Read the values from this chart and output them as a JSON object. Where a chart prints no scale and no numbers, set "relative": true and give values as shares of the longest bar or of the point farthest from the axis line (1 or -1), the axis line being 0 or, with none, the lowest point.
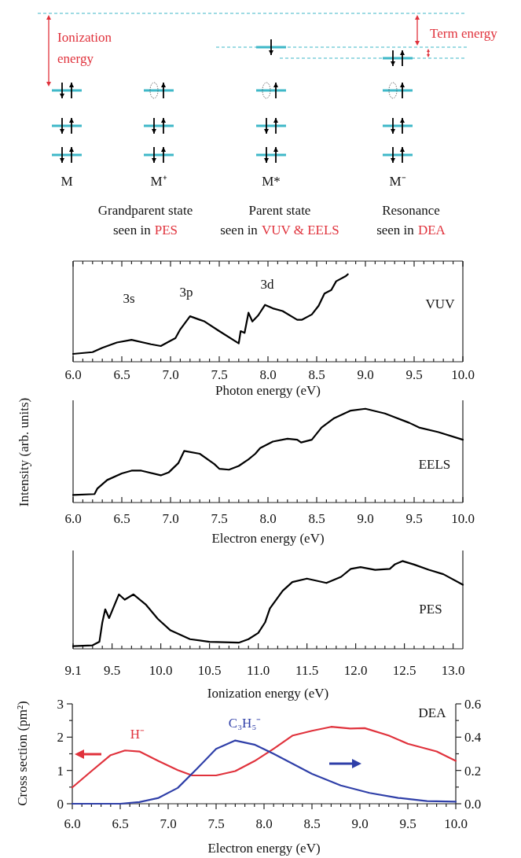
{
  "chart_data": [
    {
      "type": "other",
      "annotations": [
        "Ionization energy",
        "Term energy",
        "M",
        "M⁺",
        "M*",
        "M⁻",
        "Grandparent state",
        "seen in",
        "PES",
        "Parent state",
        "seen in",
        "VUV & EELS",
        "Resonance",
        "seen in",
        "DEA"
      ]
    },
    {
      "type": "line",
      "title": "VUV",
      "xlabel": "Photon energy (eV)",
      "relative": true,
      "x": [
        6.0,
        6.2,
        6.3,
        6.45,
        6.6,
        6.8,
        6.9,
        7.0,
        7.05,
        7.1,
        7.2,
        7.35,
        7.5,
        7.7,
        7.72,
        7.76,
        7.8,
        7.84,
        7.9,
        7.97,
        8.05,
        8.15,
        8.3,
        8.35,
        8.45,
        8.52,
        8.58,
        8.65,
        8.7,
        8.8,
        8.82
      ],
      "series": [
        {
          "color": "#000000",
          "values": [
            0.09,
            0.11,
            0.16,
            0.22,
            0.25,
            0.2,
            0.18,
            0.24,
            0.27,
            0.37,
            0.52,
            0.46,
            0.35,
            0.21,
            0.35,
            0.33,
            0.56,
            0.46,
            0.53,
            0.65,
            0.61,
            0.58,
            0.48,
            0.48,
            0.54,
            0.64,
            0.78,
            0.82,
            0.92,
            0.98,
            1.0
          ]
        }
      ],
      "annotations": [
        "3s",
        "3p",
        "3d"
      ],
      "xlim": [
        6.0,
        10.0
      ],
      "xticks": [
        {
          "value": 6.0,
          "label": "6.0"
        },
        {
          "value": 6.1,
          "label": null
        },
        {
          "value": 6.2,
          "label": null
        },
        {
          "value": 6.3,
          "label": null
        },
        {
          "value": 6.4,
          "label": null
        },
        {
          "value": 6.5,
          "label": "6.5"
        },
        {
          "value": 6.6,
          "label": null
        },
        {
          "value": 6.7,
          "label": null
        },
        {
          "value": 6.8,
          "label": null
        },
        {
          "value": 6.9,
          "label": null
        },
        {
          "value": 7.0,
          "label": "7.0"
        },
        {
          "value": 7.1,
          "label": null
        },
        {
          "value": 7.2,
          "label": null
        },
        {
          "value": 7.3,
          "label": null
        },
        {
          "value": 7.4,
          "label": null
        },
        {
          "value": 7.5,
          "label": "7.5"
        },
        {
          "value": 7.6,
          "label": null
        },
        {
          "value": 7.7,
          "label": null
        },
        {
          "value": 7.8,
          "label": null
        },
        {
          "value": 7.9,
          "label": null
        },
        {
          "value": 8.0,
          "label": "8.0"
        },
        {
          "value": 8.1,
          "label": null
        },
        {
          "value": 8.2,
          "label": null
        },
        {
          "value": 8.3,
          "label": null
        },
        {
          "value": 8.4,
          "label": null
        },
        {
          "value": 8.5,
          "label": "8.5"
        },
        {
          "value": 8.6,
          "label": null
        },
        {
          "value": 8.7,
          "label": null
        },
        {
          "value": 8.8,
          "label": null
        },
        {
          "value": 8.9,
          "label": null
        },
        {
          "value": 9.0,
          "label": "9.0"
        },
        {
          "value": 9.1,
          "label": null
        },
        {
          "value": 9.2,
          "label": null
        },
        {
          "value": 9.3,
          "label": null
        },
        {
          "value": 9.4,
          "label": null
        },
        {
          "value": 9.5,
          "label": "9.5"
        },
        {
          "value": 9.6,
          "label": null
        },
        {
          "value": 9.7,
          "label": null
        },
        {
          "value": 9.8,
          "label": null
        },
        {
          "value": 9.9,
          "label": null
        },
        {
          "value": 10.0,
          "label": "10.0"
        }
      ],
      "tick_labels": "x"
    },
    {
      "type": "line",
      "title": "EELS",
      "xlabel": "Electron energy (eV)",
      "ylabel": "Intensity (arb. units)",
      "relative": true,
      "x": [
        6.0,
        6.22,
        6.25,
        6.35,
        6.5,
        6.6,
        6.7,
        6.9,
        6.98,
        7.08,
        7.14,
        7.3,
        7.45,
        7.5,
        7.6,
        7.7,
        7.8,
        7.87,
        7.92,
        8.05,
        8.2,
        8.3,
        8.34,
        8.45,
        8.55,
        8.68,
        8.85,
        9.0,
        9.2,
        9.3,
        9.45,
        9.55,
        9.75,
        10.0
      ],
      "series": [
        {
          "color": "#000000",
          "values": [
            0.08,
            0.09,
            0.15,
            0.24,
            0.31,
            0.34,
            0.34,
            0.29,
            0.32,
            0.42,
            0.55,
            0.52,
            0.41,
            0.36,
            0.35,
            0.39,
            0.46,
            0.52,
            0.58,
            0.65,
            0.68,
            0.67,
            0.64,
            0.67,
            0.8,
            0.9,
            0.98,
            1.0,
            0.95,
            0.91,
            0.85,
            0.8,
            0.75,
            0.67
          ]
        }
      ],
      "xlim": [
        6.0,
        10.0
      ],
      "xticks": [
        {
          "value": 6.0,
          "label": "6.0"
        },
        {
          "value": 6.1,
          "label": null
        },
        {
          "value": 6.2,
          "label": null
        },
        {
          "value": 6.3,
          "label": null
        },
        {
          "value": 6.4,
          "label": null
        },
        {
          "value": 6.5,
          "label": "6.5"
        },
        {
          "value": 6.6,
          "label": null
        },
        {
          "value": 6.7,
          "label": null
        },
        {
          "value": 6.8,
          "label": null
        },
        {
          "value": 6.9,
          "label": null
        },
        {
          "value": 7.0,
          "label": "7.0"
        },
        {
          "value": 7.1,
          "label": null
        },
        {
          "value": 7.2,
          "label": null
        },
        {
          "value": 7.3,
          "label": null
        },
        {
          "value": 7.4,
          "label": null
        },
        {
          "value": 7.5,
          "label": "7.5"
        },
        {
          "value": 7.6,
          "label": null
        },
        {
          "value": 7.7,
          "label": null
        },
        {
          "value": 7.8,
          "label": null
        },
        {
          "value": 7.9,
          "label": null
        },
        {
          "value": 8.0,
          "label": "8.0"
        },
        {
          "value": 8.1,
          "label": null
        },
        {
          "value": 8.2,
          "label": null
        },
        {
          "value": 8.3,
          "label": null
        },
        {
          "value": 8.4,
          "label": null
        },
        {
          "value": 8.5,
          "label": "8.5"
        },
        {
          "value": 8.6,
          "label": null
        },
        {
          "value": 8.7,
          "label": null
        },
        {
          "value": 8.8,
          "label": null
        },
        {
          "value": 8.9,
          "label": null
        },
        {
          "value": 9.0,
          "label": "9.0"
        },
        {
          "value": 9.1,
          "label": null
        },
        {
          "value": 9.2,
          "label": null
        },
        {
          "value": 9.3,
          "label": null
        },
        {
          "value": 9.4,
          "label": null
        },
        {
          "value": 9.5,
          "label": "9.5"
        },
        {
          "value": 9.6,
          "label": null
        },
        {
          "value": 9.7,
          "label": null
        },
        {
          "value": 9.8,
          "label": null
        },
        {
          "value": 9.9,
          "label": null
        },
        {
          "value": 10.0,
          "label": "10.0"
        }
      ],
      "tick_labels": "x"
    },
    {
      "type": "line",
      "title": "PES",
      "xlabel": "Ionization energy (eV)",
      "relative": true,
      "x": [
        9.1,
        9.3,
        9.37,
        9.4,
        9.43,
        9.47,
        9.57,
        9.63,
        9.72,
        9.85,
        9.97,
        10.1,
        10.3,
        10.5,
        10.8,
        10.9,
        11.0,
        11.07,
        11.12,
        11.25,
        11.35,
        11.5,
        11.7,
        11.85,
        11.95,
        12.05,
        12.2,
        12.35,
        12.4,
        12.48,
        12.6,
        12.75,
        12.9,
        13.1
      ],
      "series": [
        {
          "color": "#000000",
          "values": [
            0.03,
            0.04,
            0.08,
            0.3,
            0.45,
            0.35,
            0.62,
            0.56,
            0.62,
            0.5,
            0.34,
            0.21,
            0.11,
            0.08,
            0.07,
            0.11,
            0.18,
            0.3,
            0.46,
            0.66,
            0.76,
            0.8,
            0.75,
            0.82,
            0.91,
            0.93,
            0.9,
            0.91,
            0.96,
            1.0,
            0.96,
            0.9,
            0.85,
            0.73
          ]
        }
      ],
      "xlim": [
        9.1,
        13.1
      ],
      "xticks": [
        {
          "value": 9.1,
          "label": "9.1"
        },
        {
          "value": 9.2,
          "label": null
        },
        {
          "value": 9.3,
          "label": null
        },
        {
          "value": 9.4,
          "label": null
        },
        {
          "value": 9.5,
          "label": "9.5"
        },
        {
          "value": 9.6,
          "label": null
        },
        {
          "value": 9.7,
          "label": null
        },
        {
          "value": 9.8,
          "label": null
        },
        {
          "value": 9.9,
          "label": null
        },
        {
          "value": 10.0,
          "label": "10.0"
        },
        {
          "value": 10.1,
          "label": null
        },
        {
          "value": 10.2,
          "label": null
        },
        {
          "value": 10.3,
          "label": null
        },
        {
          "value": 10.4,
          "label": null
        },
        {
          "value": 10.5,
          "label": "10.5"
        },
        {
          "value": 10.6,
          "label": null
        },
        {
          "value": 10.7,
          "label": null
        },
        {
          "value": 10.8,
          "label": null
        },
        {
          "value": 10.9,
          "label": null
        },
        {
          "value": 11.0,
          "label": "11.0"
        },
        {
          "value": 11.1,
          "label": null
        },
        {
          "value": 11.2,
          "label": null
        },
        {
          "value": 11.3,
          "label": null
        },
        {
          "value": 11.4,
          "label": null
        },
        {
          "value": 11.5,
          "label": "11.5"
        },
        {
          "value": 11.6,
          "label": null
        },
        {
          "value": 11.7,
          "label": null
        },
        {
          "value": 11.8,
          "label": null
        },
        {
          "value": 11.9,
          "label": null
        },
        {
          "value": 12.0,
          "label": "12.0"
        },
        {
          "value": 12.1,
          "label": null
        },
        {
          "value": 12.2,
          "label": null
        },
        {
          "value": 12.3,
          "label": null
        },
        {
          "value": 12.4,
          "label": null
        },
        {
          "value": 12.5,
          "label": "12.5"
        },
        {
          "value": 12.6,
          "label": null
        },
        {
          "value": 12.7,
          "label": null
        },
        {
          "value": 12.8,
          "label": null
        },
        {
          "value": 12.9,
          "label": null
        },
        {
          "value": 13.0,
          "label": "13.0"
        }
      ],
      "tick_labels": "x"
    },
    {
      "type": "line",
      "title": "DEA",
      "xlabel": "Electron energy (eV)",
      "ylabel": "Cross section (pm²)",
      "series": [
        {
          "name": "H⁻",
          "color": "#e0323c",
          "x": [
            6.0,
            6.2,
            6.4,
            6.55,
            6.7,
            6.9,
            7.1,
            7.25,
            7.5,
            7.7,
            7.9,
            8.1,
            8.3,
            8.5,
            8.7,
            8.9,
            9.05,
            9.3,
            9.5,
            9.8,
            10.0
          ],
          "values": [
            0.49,
            0.98,
            1.46,
            1.6,
            1.57,
            1.28,
            1.01,
            0.85,
            0.85,
            0.98,
            1.28,
            1.65,
            2.05,
            2.19,
            2.31,
            2.26,
            2.27,
            2.05,
            1.8,
            1.57,
            1.29
          ]
        },
        {
          "name": "C₃H₅⁻",
          "color": "#2f3fa8",
          "axis": "y2",
          "x": [
            6.0,
            6.5,
            6.7,
            6.9,
            7.1,
            7.3,
            7.5,
            7.7,
            7.9,
            8.1,
            8.3,
            8.5,
            8.8,
            9.1,
            9.4,
            9.7,
            10.0
          ],
          "values": [
            0.0,
            0.0,
            0.01,
            0.035,
            0.095,
            0.21,
            0.33,
            0.38,
            0.355,
            0.3,
            0.24,
            0.18,
            0.11,
            0.065,
            0.035,
            0.016,
            0.012
          ]
        }
      ],
      "xlim": [
        6.0,
        10.0
      ],
      "xticks": [
        {
          "value": 6.0,
          "label": "6.0"
        },
        {
          "value": 6.1,
          "label": null
        },
        {
          "value": 6.2,
          "label": null
        },
        {
          "value": 6.3,
          "label": null
        },
        {
          "value": 6.4,
          "label": null
        },
        {
          "value": 6.5,
          "label": "6.5"
        },
        {
          "value": 6.6,
          "label": null
        },
        {
          "value": 6.7,
          "label": null
        },
        {
          "value": 6.8,
          "label": null
        },
        {
          "value": 6.9,
          "label": null
        },
        {
          "value": 7.0,
          "label": "7.0"
        },
        {
          "value": 7.1,
          "label": null
        },
        {
          "value": 7.2,
          "label": null
        },
        {
          "value": 7.3,
          "label": null
        },
        {
          "value": 7.4,
          "label": null
        },
        {
          "value": 7.5,
          "label": "7.5"
        },
        {
          "value": 7.6,
          "label": null
        },
        {
          "value": 7.7,
          "label": null
        },
        {
          "value": 7.8,
          "label": null
        },
        {
          "value": 7.9,
          "label": null
        },
        {
          "value": 8.0,
          "label": "8.0"
        },
        {
          "value": 8.1,
          "label": null
        },
        {
          "value": 8.2,
          "label": null
        },
        {
          "value": 8.3,
          "label": null
        },
        {
          "value": 8.4,
          "label": null
        },
        {
          "value": 8.5,
          "label": "8.5"
        },
        {
          "value": 8.6,
          "label": null
        },
        {
          "value": 8.7,
          "label": null
        },
        {
          "value": 8.8,
          "label": null
        },
        {
          "value": 8.9,
          "label": null
        },
        {
          "value": 9.0,
          "label": "9.0"
        },
        {
          "value": 9.1,
          "label": null
        },
        {
          "value": 9.2,
          "label": null
        },
        {
          "value": 9.3,
          "label": null
        },
        {
          "value": 9.4,
          "label": null
        },
        {
          "value": 9.5,
          "label": "9.5"
        },
        {
          "value": 9.6,
          "label": null
        },
        {
          "value": 9.7,
          "label": null
        },
        {
          "value": 9.8,
          "label": null
        },
        {
          "value": 9.9,
          "label": null
        },
        {
          "value": 10.0,
          "label": "10.0"
        }
      ],
      "ylim": [
        0,
        3
      ],
      "yticks": [
        0,
        {
          "value": 0.5,
          "label": null
        },
        1,
        {
          "value": 1.5,
          "label": null
        },
        2,
        {
          "value": 2.5,
          "label": null
        },
        3
      ],
      "y2lim": [
        0,
        0.6
      ],
      "y2ticks": [
        {
          "value": 0,
          "label": "0.0"
        },
        {
          "value": 0.1,
          "label": null
        },
        {
          "value": 0.2,
          "label": "0.2"
        },
        {
          "value": 0.3,
          "label": null
        },
        {
          "value": 0.4,
          "label": "0.4"
        },
        {
          "value": 0.5,
          "label": null
        },
        {
          "value": 0.6,
          "label": "0.6"
        }
      ]
    }
  ]
}
